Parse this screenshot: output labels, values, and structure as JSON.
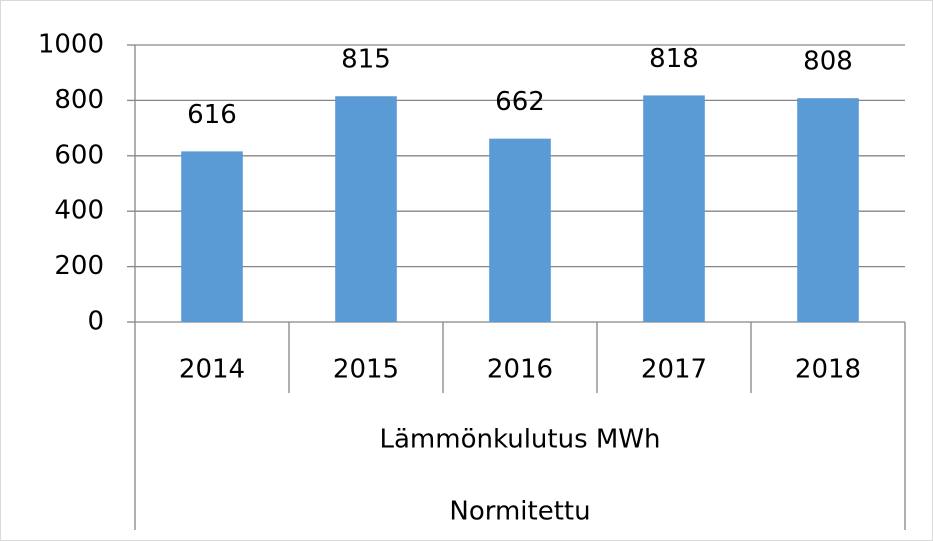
{
  "chart_data": {
    "type": "bar",
    "categories": [
      "2014",
      "2015",
      "2016",
      "2017",
      "2018"
    ],
    "category_groups": [
      "Lämmönkulutus MWh",
      "Normitettu"
    ],
    "values": [
      616,
      815,
      662,
      818,
      808
    ],
    "color": "#5b9bd5",
    "ylim": [
      0,
      1000
    ],
    "yticks": [
      0,
      200,
      400,
      600,
      800,
      1000
    ],
    "grid": true
  }
}
